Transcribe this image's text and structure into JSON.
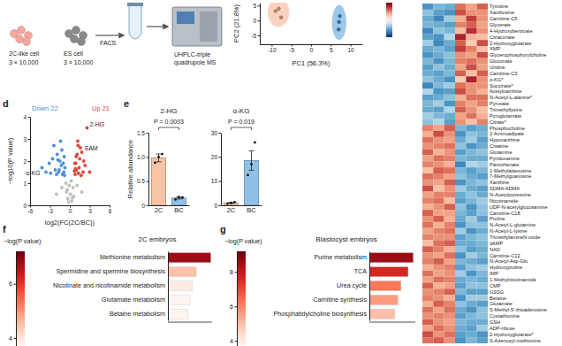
{
  "schematic": {
    "cells": [
      {
        "label": "2C-like cell",
        "count": "3 × 10,000"
      },
      {
        "label": "ES cell",
        "count": "3 × 10,000"
      }
    ],
    "method": "FACS",
    "instrument": "UHPLC-triple quadrupole MS"
  },
  "chart_data": [
    {
      "type": "scatter",
      "xlabel": "PC1 (56.3%)",
      "ylabel": "PC2 (21.8%)",
      "xlim": [
        -13,
        13
      ],
      "ylim": [
        -8,
        6
      ],
      "xticks": [
        -10,
        -5,
        0,
        5,
        10
      ],
      "yticks": [
        -5,
        0,
        5
      ],
      "series": [
        {
          "color": "#f4a582",
          "x": [
            -9,
            -7.6,
            -8.2
          ],
          "values": [
            3.2,
            1.0,
            4.0
          ]
        },
        {
          "color": "#3f8fd2",
          "x": [
            7.0,
            7.3,
            7.1
          ],
          "values": [
            -3.0,
            1.5,
            -0.5
          ]
        }
      ]
    },
    {
      "type": "heatmap",
      "colorbar_range": [
        -2,
        2
      ],
      "rows": [
        "Tyrosine",
        "Xanthosine",
        "Carnitine-C5",
        "Glycerate",
        "4-Hydroxybenzoate",
        "Citraconate",
        "2-Hydroxyglutarate",
        "XMP",
        "Glycerophosphorylcholine",
        "Gluconate",
        "Uridine",
        "Carnitine-C3",
        "α-KG*",
        "Succinate*",
        "Acetylcarnitine",
        "N-Acetyl-L-alanine*",
        "Pyruvate",
        "Trimethyllysine",
        "Pyroglutamate",
        "Citrate*",
        "Phosphocholine",
        "2-Aminoadipate",
        "Hypoxanthine",
        "Creatine",
        "Glutamine",
        "Pyridoxamine",
        "Pantothenate",
        "1-Methyladenosine",
        "7-Methylguanosine",
        "Xanthine",
        "SDMA-ADMA",
        "N-Acetylputrescine",
        "Nicotinamide",
        "UDP-N-acetylglucosamine",
        "Carnitine-C18",
        "Proline",
        "N-Acetyl-L-glutamine",
        "N-Acetyl-L-lysine",
        "TrimethylamineN-oxide",
        "dAMP",
        "NAD",
        "Carnitine-C12",
        "N-Acetyl-Asp-Glu",
        "Hydroxyproline",
        "IMP",
        "1-Methylnicotinamide",
        "CMP",
        "GSSG",
        "Betaine",
        "Glutamate",
        "S-Methyl-5'-thioadenosine",
        "Cystathionine",
        "GSH",
        "ADP-ribose",
        "2-Hydroxyglutarate*",
        "S-Adenosyl-methionine"
      ],
      "cells": [
        [
          -1.2,
          -0.9,
          -1.0,
          1.1,
          0.8,
          1.2
        ],
        [
          -0.8,
          -1.1,
          -1.2,
          1.3,
          0.9,
          0.9
        ],
        [
          -1.0,
          -1.3,
          -0.7,
          0.7,
          1.4,
          0.9
        ],
        [
          -0.9,
          -1.0,
          -1.1,
          1.0,
          1.2,
          0.8
        ],
        [
          -1.3,
          -0.8,
          -0.9,
          0.6,
          1.5,
          0.9
        ],
        [
          -1.1,
          -1.2,
          -0.6,
          1.6,
          0.7,
          0.6
        ],
        [
          -0.7,
          -1.3,
          -1.0,
          1.2,
          0.5,
          1.3
        ],
        [
          -1.0,
          -0.9,
          -1.1,
          1.4,
          1.0,
          0.6
        ],
        [
          -1.2,
          -1.0,
          -0.8,
          0.9,
          0.8,
          1.3
        ],
        [
          -0.9,
          -1.2,
          -0.9,
          1.0,
          1.1,
          0.9
        ],
        [
          -1.1,
          -0.8,
          -1.0,
          0.8,
          1.3,
          0.8
        ],
        [
          -1.0,
          -1.1,
          -0.9,
          1.2,
          0.6,
          1.2
        ],
        [
          -0.8,
          -1.0,
          -1.2,
          0.5,
          1.6,
          0.9
        ],
        [
          -1.3,
          -0.9,
          -0.7,
          1.1,
          0.9,
          0.9
        ],
        [
          -0.6,
          -1.2,
          -1.1,
          1.3,
          0.9,
          0.7
        ],
        [
          -1.1,
          -1.0,
          -0.8,
          0.7,
          1.1,
          1.1
        ],
        [
          -0.9,
          -0.7,
          -1.2,
          1.0,
          0.8,
          1.0
        ],
        [
          -1.0,
          -1.1,
          -0.6,
          1.2,
          0.9,
          0.6
        ],
        [
          -0.7,
          -0.9,
          -1.0,
          0.8,
          1.1,
          0.7
        ],
        [
          -0.8,
          -0.6,
          -1.1,
          0.9,
          0.6,
          1.0
        ],
        [
          1.0,
          0.8,
          1.2,
          -0.9,
          -1.1,
          -1.0
        ],
        [
          0.7,
          1.3,
          0.9,
          -1.2,
          -0.8,
          -0.9
        ],
        [
          1.1,
          0.9,
          0.8,
          -1.0,
          -0.7,
          -1.1
        ],
        [
          0.9,
          1.0,
          1.1,
          -0.8,
          -1.2,
          -1.0
        ],
        [
          1.2,
          0.7,
          0.9,
          -1.1,
          -0.9,
          -0.8
        ],
        [
          0.8,
          1.1,
          1.0,
          -0.9,
          -1.0,
          -1.0
        ],
        [
          1.0,
          0.9,
          0.7,
          -1.3,
          -0.6,
          -0.7
        ],
        [
          0.6,
          1.2,
          1.1,
          -0.9,
          -1.1,
          -0.9
        ],
        [
          1.1,
          1.0,
          0.8,
          -0.8,
          -1.0,
          -1.1
        ],
        [
          0.9,
          0.8,
          1.2,
          -1.2,
          -0.9,
          -0.8
        ],
        [
          1.3,
          0.6,
          0.9,
          -0.7,
          -1.0,
          -1.1
        ],
        [
          0.8,
          1.0,
          1.0,
          -1.0,
          -0.8,
          -1.0
        ],
        [
          1.0,
          1.1,
          0.6,
          -1.1,
          -0.9,
          -0.7
        ],
        [
          0.7,
          0.9,
          1.2,
          -0.8,
          -1.2,
          -0.8
        ],
        [
          1.2,
          0.8,
          0.8,
          -0.9,
          -1.1,
          -0.8
        ],
        [
          0.9,
          1.2,
          0.7,
          -1.0,
          -0.7,
          -1.1
        ],
        [
          1.1,
          0.7,
          1.0,
          -1.2,
          -0.8,
          -0.8
        ],
        [
          0.8,
          1.0,
          1.1,
          -0.7,
          -1.2,
          -1.0
        ],
        [
          1.0,
          0.9,
          0.9,
          -1.1,
          -0.9,
          -0.8
        ],
        [
          0.6,
          1.1,
          1.2,
          -1.0,
          -1.0,
          -0.9
        ],
        [
          1.2,
          1.0,
          0.7,
          -0.8,
          -1.1,
          -1.0
        ],
        [
          0.9,
          0.8,
          1.1,
          -1.2,
          -0.7,
          -0.9
        ],
        [
          1.0,
          1.2,
          0.8,
          -0.9,
          -1.0,
          -1.1
        ],
        [
          0.7,
          0.9,
          1.0,
          -1.1,
          -0.8,
          -0.7
        ],
        [
          1.1,
          0.8,
          0.9,
          -0.7,
          -1.2,
          -0.9
        ],
        [
          0.8,
          1.1,
          1.0,
          -1.0,
          -0.9,
          -1.0
        ],
        [
          1.2,
          0.7,
          0.8,
          -1.1,
          -0.8,
          -0.8
        ],
        [
          0.9,
          1.0,
          1.2,
          -0.9,
          -1.1,
          -1.1
        ],
        [
          1.0,
          0.9,
          0.7,
          -1.2,
          -0.7,
          -0.7
        ],
        [
          0.7,
          1.2,
          1.0,
          -0.8,
          -1.0,
          -1.1
        ],
        [
          1.1,
          0.8,
          1.1,
          -1.0,
          -1.2,
          -0.8
        ],
        [
          0.9,
          1.0,
          0.9,
          -1.1,
          -0.9,
          -0.8
        ],
        [
          1.2,
          0.9,
          0.8,
          -0.9,
          -1.0,
          -1.0
        ],
        [
          0.8,
          1.1,
          0.9,
          -1.0,
          -1.1,
          -0.7
        ],
        [
          1.3,
          0.9,
          1.1,
          -1.1,
          -1.0,
          -1.2
        ],
        [
          1.1,
          1.2,
          0.9,
          -1.2,
          -0.9,
          -1.1
        ]
      ]
    },
    {
      "type": "scatter",
      "panel": "d",
      "xlabel": "log2(FC(2C/BC))",
      "ylabel": "−log10(P value)",
      "xlim": [
        -6,
        6
      ],
      "ylim": [
        0,
        4
      ],
      "xticks": [
        -6,
        -3,
        0,
        3,
        6
      ],
      "yticks": [
        0,
        1,
        2,
        3,
        4
      ],
      "series": [
        {
          "color": "#4a90d9",
          "x": [
            -4.2,
            -3.1,
            -2.6,
            -2.2,
            -1.9,
            -1.7,
            -1.5,
            -1.3,
            -1.2,
            -1.1,
            -1.0,
            -0.9,
            -0.85,
            -0.8,
            -2.9,
            -2.4,
            -1.6,
            -1.4,
            -3.6,
            -2.0,
            -0.75,
            -1.8
          ],
          "values": [
            1.7,
            1.9,
            2.1,
            1.6,
            2.3,
            1.5,
            2.0,
            1.8,
            2.5,
            1.4,
            1.9,
            1.5,
            2.2,
            1.35,
            1.45,
            2.7,
            1.6,
            2.9,
            1.5,
            1.4,
            1.7,
            2.05
          ]
        },
        {
          "color": "#e0443a",
          "x": [
            2.6,
            1.8,
            1.2,
            1.0,
            0.9,
            1.5,
            2.0,
            0.8,
            1.1,
            1.4,
            2.3,
            0.7,
            1.6,
            0.95,
            1.3,
            2.1,
            0.85,
            1.7,
            1.25,
            3.0,
            0.75
          ],
          "values": [
            3.5,
            2.4,
            2.9,
            1.6,
            1.9,
            2.1,
            1.5,
            1.4,
            2.3,
            1.7,
            1.8,
            1.55,
            2.6,
            2.2,
            1.45,
            2.0,
            1.65,
            1.35,
            2.7,
            1.5,
            1.9
          ]
        },
        {
          "color": "#bdbdbd",
          "x": [
            -0.5,
            -0.3,
            -0.1,
            0.1,
            0.3,
            0.5,
            -0.6,
            0.6,
            -0.2,
            0.2,
            -0.4,
            0.4,
            -1.2,
            1.1,
            -2.0,
            1.8
          ],
          "values": [
            0.6,
            0.3,
            0.9,
            0.5,
            0.2,
            0.8,
            1.0,
            0.4,
            0.15,
            1.1,
            0.7,
            0.35,
            0.8,
            0.9,
            0.5,
            0.6
          ]
        }
      ],
      "annotations": [
        {
          "text": "Down 22"
        },
        {
          "text": "Up 21"
        },
        {
          "text": "2-HG",
          "x": 2.6,
          "y": 3.5
        },
        {
          "text": "SAM",
          "x": 1.8,
          "y": 2.4
        },
        {
          "text": "α-KG",
          "x": -4.2,
          "y": 1.7
        }
      ]
    },
    {
      "type": "bar",
      "panel": "e",
      "title": "2-HG",
      "ylabel": "Relative abundance",
      "categories": [
        "2C",
        "BC"
      ],
      "values": [
        0.98,
        0.15
      ],
      "errors": [
        0.08,
        0.02
      ],
      "points": [
        [
          0.88,
          1.0,
          1.06
        ],
        [
          0.12,
          0.17,
          0.16
        ]
      ],
      "colors": [
        "#f7c4a5",
        "#8fc1e8"
      ],
      "ylim": [
        0,
        1.5
      ],
      "yticks": [
        0,
        0.5,
        {
          "value": 1,
          "label": "1.0"
        },
        1.5
      ],
      "annotations": [
        {
          "text": "P = 0.0003"
        }
      ]
    },
    {
      "type": "bar",
      "title": "α-KG",
      "categories": [
        "2C",
        "BC"
      ],
      "values": [
        1.0,
        18.5
      ],
      "errors": [
        0.2,
        4.0
      ],
      "points": [
        [
          0.7,
          1.0,
          1.3
        ],
        [
          12.5,
          17,
          26
        ]
      ],
      "colors": [
        "#f7c4a5",
        "#8fc1e8"
      ],
      "ylim": [
        0,
        30
      ],
      "yticks": [
        0,
        10,
        20,
        30
      ],
      "annotations": [
        {
          "text": "P = 0.019"
        }
      ]
    },
    {
      "type": "bar",
      "panel": "f",
      "orientation": "horizontal",
      "title": "2C embryos",
      "categories": [
        "Methionine metabolism",
        "Spermidine and spermine biosynthesis",
        "Nicotinate and nicotinamide metabolism",
        "Glutamate metabolism",
        "Betaine metabolism"
      ],
      "values": [
        6.8,
        4.5,
        3.9,
        3.5,
        3.2
      ],
      "xlim": [
        0,
        7
      ],
      "tick_labels": "y",
      "colorbar_label": "−log(P value)",
      "colorbar_range": [
        3.7,
        7.2
      ],
      "colorbar_ticks": [
        4,
        6
      ]
    },
    {
      "type": "bar",
      "panel": "g",
      "orientation": "horizontal",
      "title": "Blastocyst embryos",
      "categories": [
        "Purine metabolism",
        "TCA",
        "Urea cycle",
        "Carnitine synthesis",
        "Phosphatidylcholine biosynthesis"
      ],
      "values": [
        8.6,
        7.6,
        6.2,
        5.6,
        5.0
      ],
      "xlim": [
        0,
        9
      ],
      "tick_labels": "y",
      "colorbar_label": "−log(P value)",
      "colorbar_range": [
        3.7,
        9.2
      ],
      "colorbar_ticks": [
        4,
        6,
        8
      ]
    }
  ]
}
